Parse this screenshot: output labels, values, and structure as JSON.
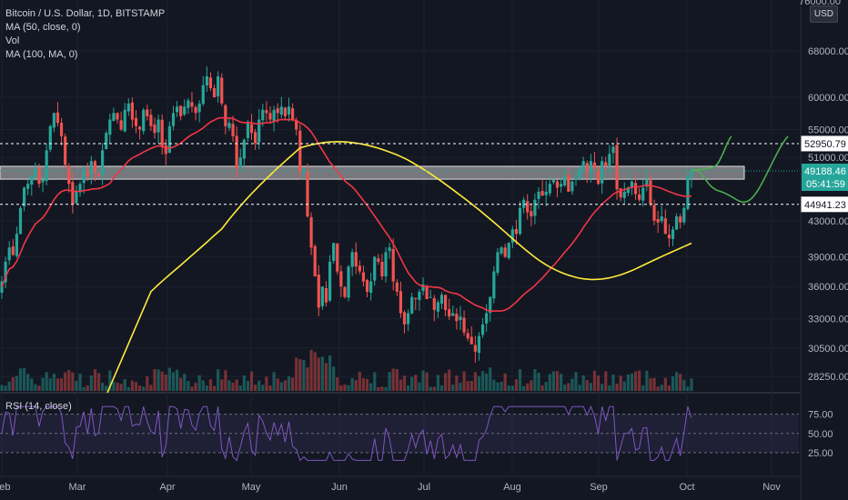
{
  "header": {
    "title": "Bitcoin / U.S. Dollar, 1D, BITSTAMP",
    "indicators": [
      "MA (50, close, 0)",
      "Vol",
      "MA (100, MA, 0)"
    ],
    "rsi_label": "RSI (14, close)",
    "currency": "USD",
    "top_cut_label": "76000.00"
  },
  "chart_data": {
    "type": "candlestick",
    "symbol": "BTCUSD",
    "timeframe": "1D",
    "price_axis": {
      "labels": [
        "68000.00",
        "60000.00",
        "55000.00",
        "51000.00",
        "43000.00",
        "39000.00",
        "36000.00",
        "33000.00",
        "30500.00",
        "28250.00"
      ],
      "scale": "log"
    },
    "time_axis": {
      "labels": [
        "Feb",
        "Mar",
        "Apr",
        "May",
        "Jun",
        "Jul",
        "Aug",
        "Sep",
        "Oct",
        "Nov"
      ]
    },
    "price_markers": [
      {
        "label": "52950.79",
        "value": 52950.79,
        "style": "dashed",
        "color": "#ffffff"
      },
      {
        "label": "49188.46",
        "value": 49188.46,
        "style": "current",
        "color": "#26a69a"
      },
      {
        "label": "05:41:59",
        "value": 49188.46,
        "style": "countdown",
        "color": "#26a69a"
      },
      {
        "label": "44941.23",
        "value": 44941.23,
        "style": "dashed",
        "color": "#ffffff"
      }
    ],
    "resistance_band": {
      "low": 48100,
      "high": 49800,
      "color": "#c8c8c8"
    },
    "rsi_axis": {
      "labels": [
        "75.00",
        "50.00",
        "25.00"
      ],
      "levels": [
        70,
        50,
        30
      ]
    },
    "closes": [
      36500,
      38500,
      40000,
      39200,
      41500,
      44500,
      47000,
      47500,
      48500,
      49500,
      47500,
      48000,
      52000,
      55500,
      57500,
      56000,
      54000,
      50000,
      47500,
      45000,
      46500,
      47500,
      49500,
      48500,
      50500,
      49000,
      48500,
      52000,
      54500,
      56500,
      57500,
      56500,
      55000,
      58000,
      59000,
      56500,
      55500,
      55000,
      58000,
      57000,
      55500,
      54500,
      56500,
      52500,
      51500,
      55500,
      57500,
      58500,
      57000,
      58500,
      59500,
      58500,
      57500,
      59000,
      62000,
      63500,
      61500,
      60000,
      63500,
      59000,
      55500,
      56000,
      54000,
      49500,
      51000,
      53500,
      56000,
      54500,
      53000,
      56500,
      58000,
      57500,
      56500,
      58000,
      57500,
      58500,
      57000,
      58500,
      56500,
      55000,
      49000,
      49500,
      43500,
      40000,
      37000,
      34000,
      36000,
      34500,
      38500,
      40500,
      37500,
      36000,
      35000,
      38000,
      39500,
      38000,
      37500,
      36500,
      35500,
      36500,
      39000,
      38500,
      37000,
      39500,
      40000,
      36500,
      35500,
      33500,
      32500,
      33500,
      35000,
      34800,
      35500,
      36200,
      34800,
      35000,
      33800,
      34500,
      35200,
      33800,
      33200,
      33500,
      32800,
      33200,
      31800,
      31300,
      30800,
      30200,
      31500,
      32500,
      33500,
      35000,
      37500,
      39500,
      40000,
      39000,
      40500,
      42000,
      41500,
      44500,
      45500,
      44000,
      43500,
      45500,
      46500,
      46000,
      46500,
      47500,
      48000,
      47000,
      47500,
      48500,
      46500,
      47800,
      48200,
      49500,
      50500,
      49000,
      50500,
      49500,
      47500,
      50500,
      49800,
      51500,
      52500,
      46800,
      45800,
      46500,
      47000,
      47800,
      46200,
      45500,
      47000,
      48000,
      45000,
      43000,
      42800,
      43500,
      41500,
      41000,
      42000,
      43500,
      42800,
      44500,
      48500,
      49188
    ],
    "ma_50_color": "#f23645",
    "ma_100_color": "#ffeb3b",
    "projection_color": "#4caf50"
  }
}
